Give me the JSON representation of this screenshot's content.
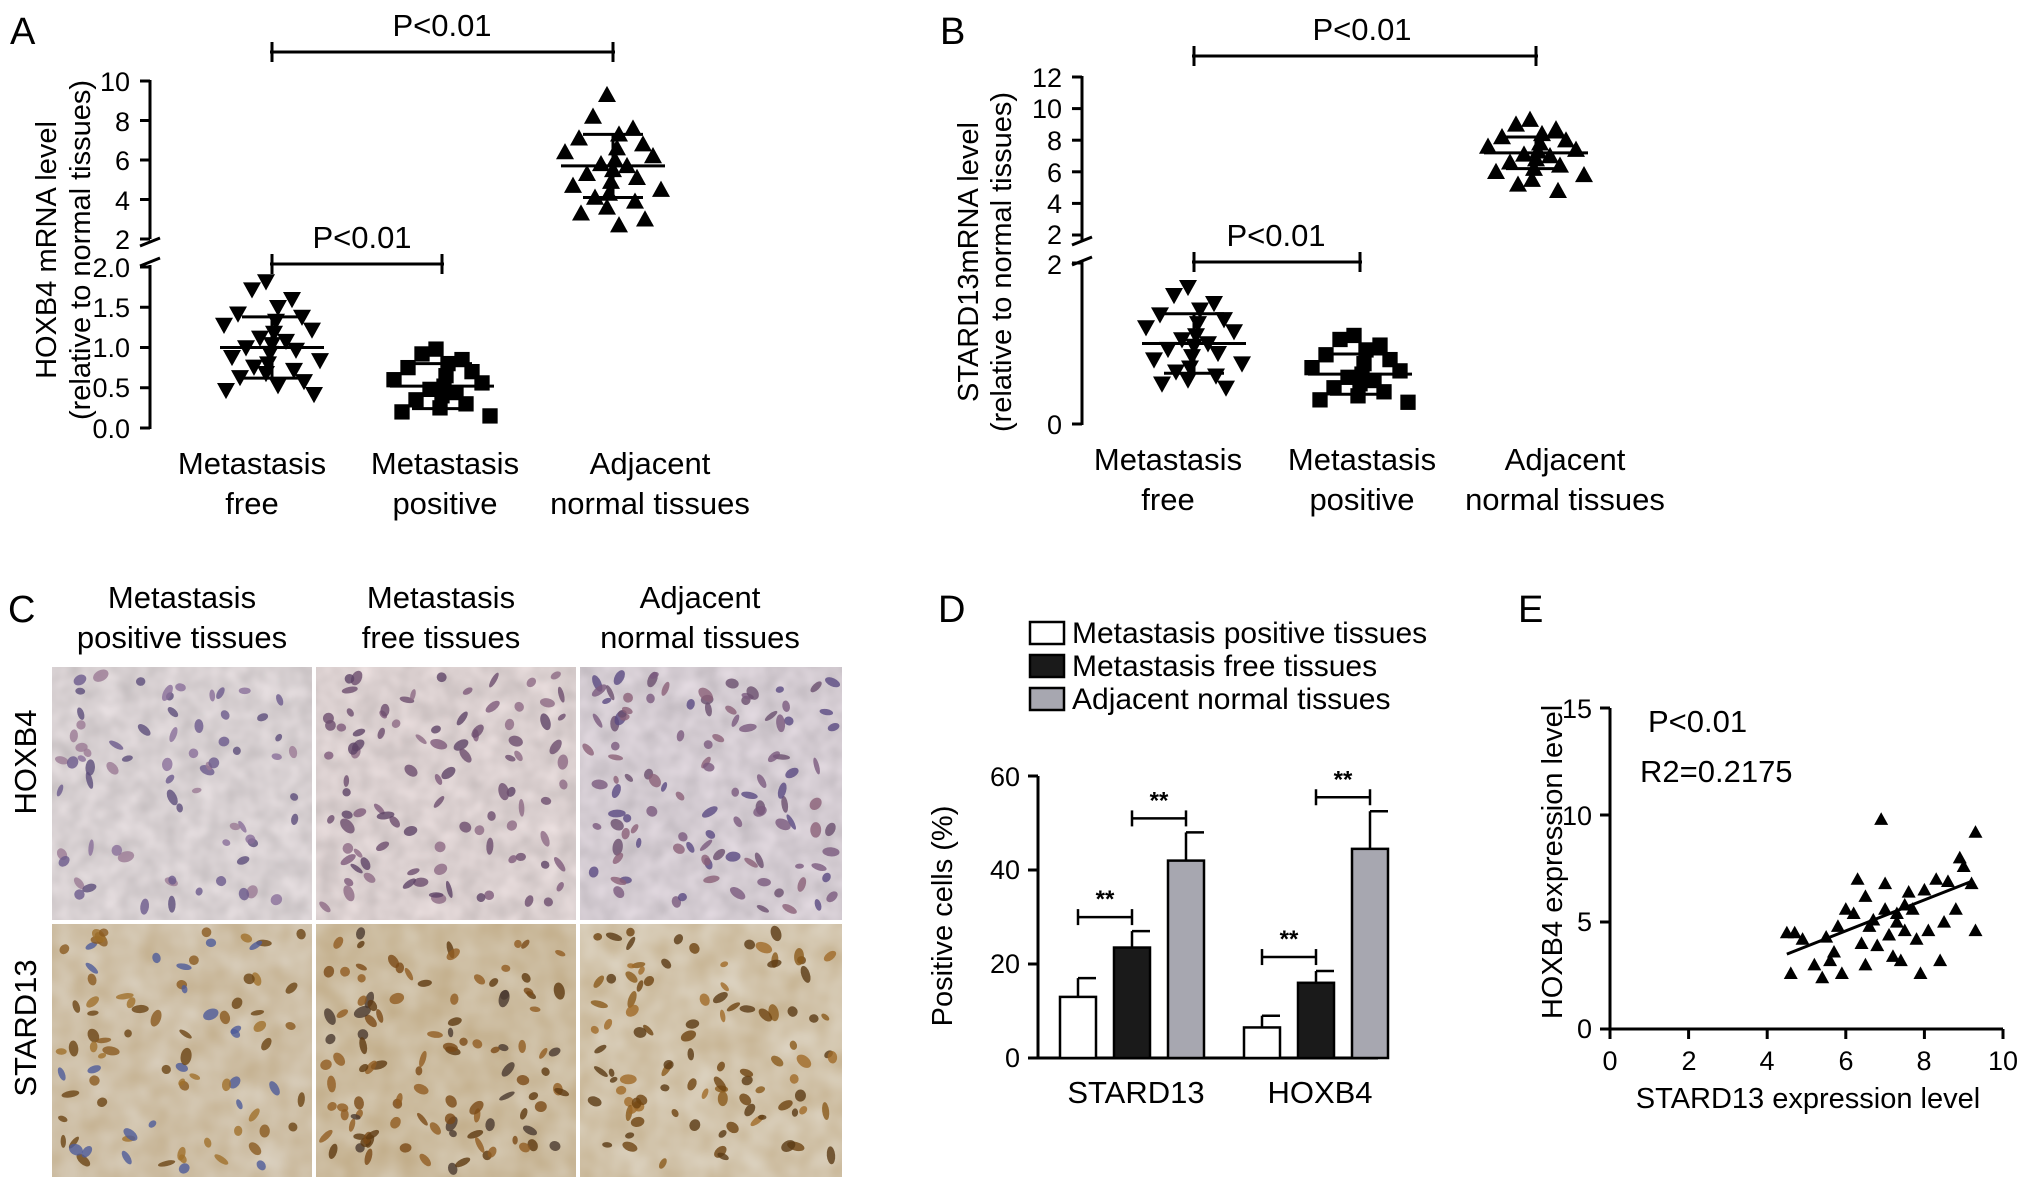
{
  "panel_letters": {
    "a": "A",
    "b": "B",
    "c": "C",
    "d": "D",
    "e": "E"
  },
  "chart_data": [
    {
      "panel": "A",
      "type": "scatter",
      "ylabel_line1": "HOXB4 mRNA level",
      "ylabel_line2": "(relative to normal tissues)",
      "categories": [
        {
          "line1": "Metastasis",
          "line2": "free"
        },
        {
          "line1": "Metastasis",
          "line2": "positive"
        },
        {
          "line1": "Adjacent",
          "line2": "normal tissues"
        }
      ],
      "y_ticks_lower": [
        "0.0",
        "0.5",
        "1.0",
        "1.5",
        "2.0"
      ],
      "y_ticks_upper": [
        "2",
        "4",
        "6",
        "8",
        "10"
      ],
      "ylim_lower": [
        0,
        2
      ],
      "ylim_upper": [
        2,
        10
      ],
      "axis_break": true,
      "groups": [
        {
          "marker": "triangle-down",
          "mean": 1.0,
          "sd": 0.38,
          "values": [
            1.82,
            1.72,
            1.6,
            1.5,
            1.42,
            1.38,
            1.33,
            1.28,
            1.22,
            1.18,
            1.12,
            1.08,
            1.04,
            1.0,
            0.97,
            0.93,
            0.88,
            0.84,
            0.8,
            0.76,
            0.72,
            0.68,
            0.63,
            0.58,
            0.53,
            0.47,
            0.42
          ]
        },
        {
          "marker": "square",
          "mean": 0.52,
          "sd": 0.28,
          "values": [
            0.98,
            0.92,
            0.85,
            0.8,
            0.75,
            0.7,
            0.65,
            0.6,
            0.56,
            0.52,
            0.48,
            0.44,
            0.4,
            0.35,
            0.3,
            0.25,
            0.2,
            0.15
          ]
        },
        {
          "marker": "triangle-up",
          "mean": 5.7,
          "sd": 1.6,
          "values": [
            9.3,
            8.2,
            7.6,
            7.3,
            7.1,
            6.8,
            6.6,
            6.4,
            6.2,
            6.0,
            5.8,
            5.7,
            5.5,
            5.3,
            5.1,
            4.9,
            4.7,
            4.5,
            4.3,
            4.1,
            3.9,
            3.6,
            3.3,
            3.0,
            2.7
          ]
        }
      ],
      "annotations": [
        {
          "from": 0,
          "to": 2,
          "text": "P<0.01"
        },
        {
          "from": 0,
          "to": 1,
          "text": "P<0.01"
        }
      ]
    },
    {
      "panel": "B",
      "type": "scatter",
      "ylabel_line1": "STARD13mRNA level",
      "ylabel_line2": "(relative to normal tissues)",
      "categories": [
        {
          "line1": "Metastasis",
          "line2": "free"
        },
        {
          "line1": "Metastasis",
          "line2": "positive"
        },
        {
          "line1": "Adjacent",
          "line2": "normal tissues"
        }
      ],
      "y_ticks_lower": [
        "0",
        "2"
      ],
      "y_ticks_upper": [
        "2",
        "4",
        "6",
        "8",
        "10",
        "12"
      ],
      "ylim_lower": [
        0,
        2
      ],
      "ylim_upper": [
        2,
        12
      ],
      "axis_break": true,
      "groups": [
        {
          "marker": "triangle-down",
          "mean": 1.0,
          "sd": 0.37,
          "values": [
            1.7,
            1.6,
            1.5,
            1.42,
            1.36,
            1.3,
            1.25,
            1.2,
            1.15,
            1.1,
            1.05,
            1.0,
            0.97,
            0.93,
            0.88,
            0.84,
            0.8,
            0.75,
            0.7,
            0.65,
            0.6,
            0.55,
            0.5,
            0.45
          ]
        },
        {
          "marker": "square",
          "mean": 0.62,
          "sd": 0.25,
          "values": [
            1.1,
            1.05,
            0.98,
            0.92,
            0.86,
            0.8,
            0.75,
            0.7,
            0.66,
            0.62,
            0.58,
            0.54,
            0.5,
            0.45,
            0.4,
            0.35,
            0.3,
            0.27
          ]
        },
        {
          "marker": "triangle-up",
          "mean": 7.2,
          "sd": 1.0,
          "values": [
            9.3,
            9.0,
            8.7,
            8.4,
            8.2,
            8.0,
            7.8,
            7.6,
            7.4,
            7.3,
            7.1,
            7.0,
            6.8,
            6.6,
            6.4,
            6.2,
            6.0,
            5.8,
            5.5,
            5.2,
            4.8
          ]
        }
      ],
      "annotations": [
        {
          "from": 0,
          "to": 2,
          "text": "P<0.01"
        },
        {
          "from": 0,
          "to": 1,
          "text": "P<0.01"
        }
      ]
    },
    {
      "panel": "D",
      "type": "bar",
      "ylabel": "Positive cells (%)",
      "categories": [
        "STARD13",
        "HOXB4"
      ],
      "y_ticks": [
        "0",
        "20",
        "40",
        "60"
      ],
      "ylim": [
        0,
        60
      ],
      "legend_position": "top",
      "series": [
        {
          "name": "Metastasis positive tissues",
          "color": "#ffffff",
          "values": [
            13,
            6.5
          ],
          "errors": [
            4,
            2.5
          ]
        },
        {
          "name": "Metastasis free tissues",
          "color": "#1a1a1a",
          "values": [
            23.5,
            16
          ],
          "errors": [
            3.5,
            2.5
          ]
        },
        {
          "name": "Adjacent normal tissues",
          "color": "#a7a7b0",
          "values": [
            42,
            44.5
          ],
          "errors": [
            6,
            8
          ]
        }
      ],
      "annotations": [
        {
          "category": 0,
          "from": 0,
          "to": 1,
          "text": "**"
        },
        {
          "category": 0,
          "from": 1,
          "to": 2,
          "text": "**"
        },
        {
          "category": 1,
          "from": 0,
          "to": 1,
          "text": "**"
        },
        {
          "category": 1,
          "from": 1,
          "to": 2,
          "text": "**"
        }
      ]
    },
    {
      "panel": "E",
      "type": "scatter",
      "xlabel": "STARD13 expression level",
      "ylabel": "HOXB4 expression level",
      "x_ticks": [
        "0",
        "2",
        "4",
        "6",
        "8",
        "10"
      ],
      "y_ticks": [
        "0",
        "5",
        "10",
        "15"
      ],
      "xlim": [
        0,
        10
      ],
      "ylim": [
        0,
        15
      ],
      "p_text": "P<0.01",
      "r2_text": "R2=0.2175",
      "fit_line": {
        "x1": 4.5,
        "y1": 3.5,
        "x2": 9.2,
        "y2": 6.9
      },
      "points": [
        [
          4.5,
          4.5
        ],
        [
          4.7,
          4.5
        ],
        [
          4.6,
          2.6
        ],
        [
          4.9,
          4.2
        ],
        [
          5.2,
          3.0
        ],
        [
          5.4,
          2.4
        ],
        [
          5.6,
          3.2
        ],
        [
          5.7,
          3.6
        ],
        [
          5.9,
          2.6
        ],
        [
          5.5,
          4.3
        ],
        [
          5.8,
          4.8
        ],
        [
          6.0,
          5.6
        ],
        [
          6.2,
          5.4
        ],
        [
          6.3,
          7.0
        ],
        [
          6.4,
          4.0
        ],
        [
          6.5,
          3.0
        ],
        [
          6.5,
          6.2
        ],
        [
          6.6,
          4.8
        ],
        [
          6.7,
          5.1
        ],
        [
          6.8,
          3.9
        ],
        [
          6.9,
          9.8
        ],
        [
          7.0,
          5.6
        ],
        [
          7.0,
          6.8
        ],
        [
          7.1,
          4.4
        ],
        [
          7.2,
          3.4
        ],
        [
          7.3,
          5.4
        ],
        [
          7.3,
          5.0
        ],
        [
          7.4,
          3.2
        ],
        [
          7.5,
          5.8
        ],
        [
          7.5,
          4.6
        ],
        [
          7.6,
          6.4
        ],
        [
          7.7,
          5.6
        ],
        [
          7.8,
          4.2
        ],
        [
          7.9,
          2.6
        ],
        [
          8.0,
          6.5
        ],
        [
          8.1,
          4.6
        ],
        [
          8.3,
          7.0
        ],
        [
          8.4,
          3.2
        ],
        [
          8.5,
          5.0
        ],
        [
          8.6,
          6.9
        ],
        [
          8.8,
          5.6
        ],
        [
          8.9,
          8.0
        ],
        [
          9.0,
          7.6
        ],
        [
          9.2,
          6.8
        ],
        [
          9.3,
          4.6
        ],
        [
          9.3,
          9.2
        ]
      ]
    }
  ],
  "panel_c": {
    "columns": [
      {
        "line1": "Metastasis",
        "line2": "positive tissues"
      },
      {
        "line1": "Metastasis",
        "line2": "free tissues"
      },
      {
        "line1": "Adjacent",
        "line2": "normal tissues"
      }
    ],
    "rows": [
      "HOXB4",
      "STARD13"
    ]
  }
}
